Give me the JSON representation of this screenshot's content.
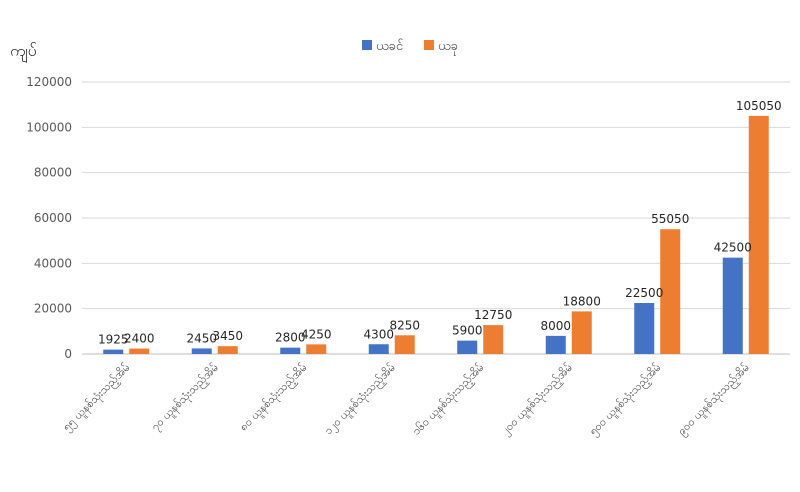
{
  "chart_data": {
    "type": "bar",
    "unit_label": "ကျပ်",
    "categories": [
      "၅၅ ယူနစ်သုံးသည့်အိမ်",
      "၇၀ ယူနစ်သုံးသည့်အိမ်",
      "၈၀ ယူနစ်သုံးသည့်အိမ်",
      "၁၂၀ ယူနစ်သုံးသည့်အိမ်",
      "၁၆၀ ယူနစ်သုံးသည့်အိမ်",
      "၂၀၀ ယူနစ်သုံးသည့်အိမ်",
      "၅၀၀ ယူနစ်သုံးသည့်အိမ်",
      "၉၀၀ ယူနစ်သုံးသည့်အိမ်"
    ],
    "series": [
      {
        "name": "ယခင်",
        "color": "#4472C4",
        "values": [
          1925,
          2450,
          2800,
          4300,
          5900,
          8000,
          22500,
          42500
        ]
      },
      {
        "name": "ယခု",
        "color": "#ED7D31",
        "values": [
          2400,
          3450,
          4250,
          8250,
          12750,
          18800,
          55050,
          105050
        ]
      }
    ],
    "y_ticks": [
      "0",
      "20000",
      "40000",
      "60000",
      "80000",
      "100000",
      "120000"
    ],
    "ylim": [
      0,
      120000
    ],
    "grid": true,
    "legend_position": "top-center"
  }
}
